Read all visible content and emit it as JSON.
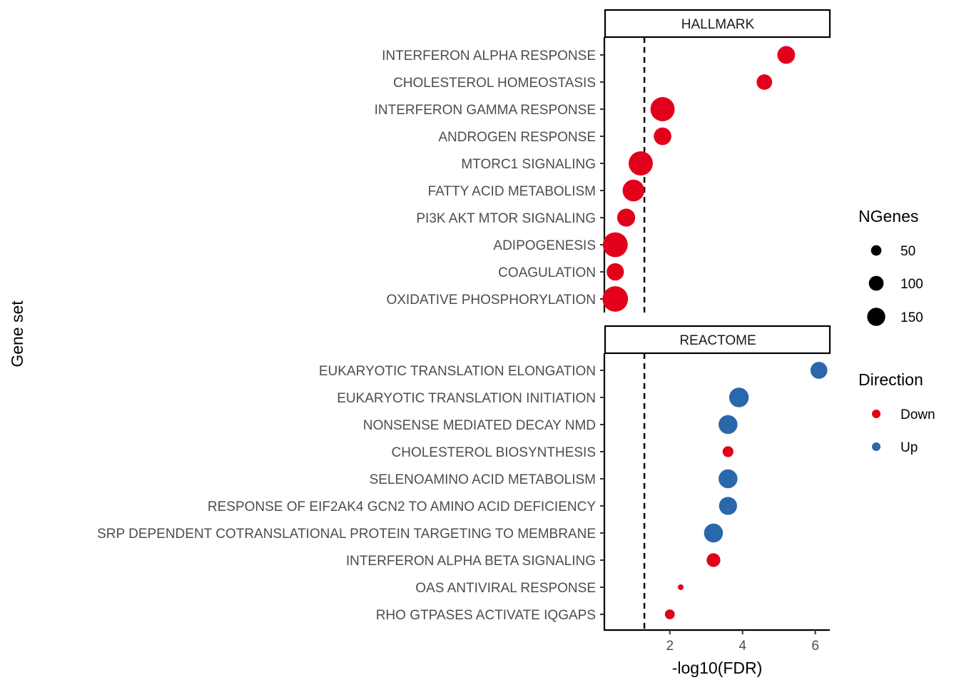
{
  "chart_data": {
    "type": "scatter",
    "xlabel": "-log10(FDR)",
    "ylabel": "Gene set",
    "xlim": [
      0.2,
      6.4
    ],
    "xticks": [
      2,
      4,
      6
    ],
    "threshold": 1.3,
    "colors": {
      "Down": "#e3001b",
      "Up": "#2a67ab"
    },
    "panels": [
      {
        "name": "HALLMARK",
        "rows": [
          {
            "label": "INTERFERON ALPHA RESPONSE",
            "x": 5.2,
            "ngenes": 97,
            "direction": "Down"
          },
          {
            "label": "CHOLESTEROL HOMEOSTASIS",
            "x": 4.6,
            "ngenes": 74,
            "direction": "Down"
          },
          {
            "label": "INTERFERON GAMMA RESPONSE",
            "x": 1.8,
            "ngenes": 180,
            "direction": "Down"
          },
          {
            "label": "ANDROGEN RESPONSE",
            "x": 1.8,
            "ngenes": 95,
            "direction": "Down"
          },
          {
            "label": "MTORC1 SIGNALING",
            "x": 1.2,
            "ngenes": 180,
            "direction": "Down"
          },
          {
            "label": "FATTY ACID METABOLISM",
            "x": 1.0,
            "ngenes": 145,
            "direction": "Down"
          },
          {
            "label": "PI3K AKT MTOR SIGNALING",
            "x": 0.8,
            "ngenes": 100,
            "direction": "Down"
          },
          {
            "label": "ADIPOGENESIS",
            "x": 0.5,
            "ngenes": 190,
            "direction": "Down"
          },
          {
            "label": "COAGULATION",
            "x": 0.5,
            "ngenes": 92,
            "direction": "Down"
          },
          {
            "label": "OXIDATIVE PHOSPHORYLATION",
            "x": 0.5,
            "ngenes": 200,
            "direction": "Down"
          }
        ]
      },
      {
        "name": "REACTOME",
        "rows": [
          {
            "label": "EUKARYOTIC TRANSLATION ELONGATION",
            "x": 6.1,
            "ngenes": 88,
            "direction": "Up"
          },
          {
            "label": "EUKARYOTIC TRANSLATION INITIATION",
            "x": 3.9,
            "ngenes": 118,
            "direction": "Up"
          },
          {
            "label": "NONSENSE MEDIATED DECAY NMD",
            "x": 3.6,
            "ngenes": 110,
            "direction": "Up"
          },
          {
            "label": "CHOLESTEROL BIOSYNTHESIS",
            "x": 3.6,
            "ngenes": 36,
            "direction": "Down"
          },
          {
            "label": "SELENOAMINO ACID METABOLISM",
            "x": 3.6,
            "ngenes": 110,
            "direction": "Up"
          },
          {
            "label": "RESPONSE OF EIF2AK4 GCN2 TO AMINO ACID DEFICIENCY",
            "x": 3.6,
            "ngenes": 100,
            "direction": "Up"
          },
          {
            "label": "SRP DEPENDENT COTRANSLATIONAL PROTEIN TARGETING TO MEMBRANE",
            "x": 3.2,
            "ngenes": 110,
            "direction": "Up"
          },
          {
            "label": "INTERFERON ALPHA BETA SIGNALING",
            "x": 3.2,
            "ngenes": 58,
            "direction": "Down"
          },
          {
            "label": "OAS ANTIVIRAL RESPONSE",
            "x": 2.3,
            "ngenes": 10,
            "direction": "Down"
          },
          {
            "label": "RHO GTPASES ACTIVATE IQGAPS",
            "x": 2.0,
            "ngenes": 30,
            "direction": "Down"
          }
        ]
      }
    ],
    "legend": {
      "size": {
        "title": "NGenes",
        "breaks": [
          50,
          100,
          150
        ],
        "labels": [
          "50",
          "100",
          "150"
        ]
      },
      "color": {
        "title": "Direction",
        "entries": [
          "Down",
          "Up"
        ],
        "labels": [
          "Down",
          "Up"
        ]
      },
      "placement": "right"
    }
  }
}
